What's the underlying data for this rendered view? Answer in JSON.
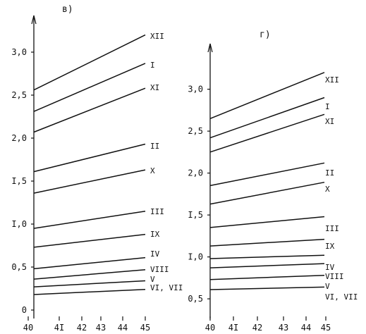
{
  "chart_data": [
    {
      "type": "line",
      "panel_label": "в)",
      "xlim": [
        40,
        45
      ],
      "ylim": [
        0,
        3.3
      ],
      "x_ticks": [
        40,
        41,
        42,
        43,
        44,
        45
      ],
      "x_tick_labels": [
        "40",
        "4I",
        "42",
        "43",
        "44",
        "45"
      ],
      "y_ticks": [
        0,
        0.5,
        1.0,
        1.5,
        2.0,
        2.5,
        3.0
      ],
      "y_tick_labels": [
        "0",
        "0,5",
        "I,0",
        "I,5",
        "2,0",
        "2,5",
        "3,0"
      ],
      "grid": false,
      "series": [
        {
          "name": "XII",
          "x": [
            40,
            45
          ],
          "y": [
            2.56,
            3.2
          ]
        },
        {
          "name": "I",
          "x": [
            40,
            45
          ],
          "y": [
            2.31,
            2.87
          ]
        },
        {
          "name": "XI",
          "x": [
            40,
            45
          ],
          "y": [
            2.07,
            2.58
          ]
        },
        {
          "name": "II",
          "x": [
            40,
            45
          ],
          "y": [
            1.61,
            1.93
          ]
        },
        {
          "name": "X",
          "x": [
            40,
            45
          ],
          "y": [
            1.36,
            1.63
          ]
        },
        {
          "name": "III",
          "x": [
            40,
            45
          ],
          "y": [
            0.95,
            1.15
          ]
        },
        {
          "name": "IX",
          "x": [
            40,
            45
          ],
          "y": [
            0.73,
            0.88
          ]
        },
        {
          "name": "IV",
          "x": [
            40,
            45
          ],
          "y": [
            0.48,
            0.61
          ]
        },
        {
          "name": "VIII",
          "x": [
            40,
            45
          ],
          "y": [
            0.36,
            0.47
          ]
        },
        {
          "name": "V",
          "x": [
            40,
            45
          ],
          "y": [
            0.27,
            0.34
          ]
        },
        {
          "name": "VI, VII",
          "x": [
            40,
            45
          ],
          "y": [
            0.18,
            0.24
          ]
        }
      ],
      "series_labels": [
        "XII",
        "I",
        "XI",
        "II",
        "X",
        "III",
        "IX",
        "IV",
        "VIII",
        "V",
        "VI, VII"
      ]
    },
    {
      "type": "line",
      "panel_label": "г)",
      "xlim": [
        40,
        45
      ],
      "ylim": [
        0.4,
        3.4
      ],
      "x_ticks": [
        40,
        41,
        42,
        43,
        44,
        45
      ],
      "x_tick_labels": [
        "40",
        "4I",
        "42",
        "43",
        "44",
        "45"
      ],
      "y_ticks": [
        0.5,
        1.0,
        1.5,
        2.0,
        2.5,
        3.0
      ],
      "y_tick_labels": [
        "0,5",
        "I,0",
        "I,5",
        "2,0",
        "2,5",
        "3,0"
      ],
      "grid": false,
      "series": [
        {
          "name": "XII",
          "x": [
            40,
            45
          ],
          "y": [
            2.65,
            3.2
          ]
        },
        {
          "name": "I",
          "x": [
            40,
            45
          ],
          "y": [
            2.42,
            2.9
          ]
        },
        {
          "name": "XI",
          "x": [
            40,
            45
          ],
          "y": [
            2.25,
            2.7
          ]
        },
        {
          "name": "II",
          "x": [
            40,
            45
          ],
          "y": [
            1.85,
            2.12
          ]
        },
        {
          "name": "X",
          "x": [
            40,
            45
          ],
          "y": [
            1.63,
            1.89
          ]
        },
        {
          "name": "III",
          "x": [
            40,
            45
          ],
          "y": [
            1.35,
            1.48
          ]
        },
        {
          "name": "IX",
          "x": [
            40,
            45
          ],
          "y": [
            1.13,
            1.21
          ]
        },
        {
          "name": "IV",
          "x": [
            40,
            45
          ],
          "y": [
            0.98,
            1.02
          ]
        },
        {
          "name": "VIII",
          "x": [
            40,
            45
          ],
          "y": [
            0.87,
            0.92
          ]
        },
        {
          "name": "V",
          "x": [
            40,
            45
          ],
          "y": [
            0.73,
            0.78
          ]
        },
        {
          "name": "VI, VII",
          "x": [
            40,
            45
          ],
          "y": [
            0.61,
            0.64
          ]
        }
      ],
      "series_labels": [
        "XII",
        "I",
        "XI",
        "II",
        "X",
        "III",
        "IX",
        "IV",
        "VIII",
        "V",
        "VI, VII"
      ]
    }
  ]
}
